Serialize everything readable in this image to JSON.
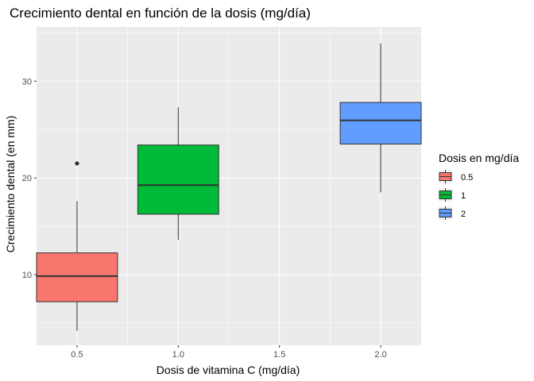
{
  "chart_data": {
    "type": "boxplot",
    "title": "Crecimiento dental en función de la dosis (mg/día)",
    "xlabel": "Dosis de vitamina C (mg/día)",
    "ylabel": "Crecimiento dental (en mm)",
    "x_ticks": [
      "0.5",
      "1.0",
      "1.5",
      "2.0"
    ],
    "y_ticks": [
      10,
      20,
      30
    ],
    "xlim": [
      0.3,
      2.2
    ],
    "ylim": [
      2.7,
      35.6
    ],
    "grid": true,
    "legend": {
      "title": "Dosis en mg/día",
      "position": "right",
      "entries": [
        "0.5",
        "1",
        "2"
      ]
    },
    "boxes": [
      {
        "label": "0.5",
        "x": 0.5,
        "min": 4.2,
        "q1": 7.2,
        "median": 9.85,
        "q3": 12.25,
        "max": 17.6,
        "outliers": [
          21.5
        ],
        "color": "#F8766D"
      },
      {
        "label": "1",
        "x": 1.0,
        "min": 13.6,
        "q1": 16.25,
        "median": 19.25,
        "q3": 23.4,
        "max": 27.3,
        "outliers": [],
        "color": "#00BA38"
      },
      {
        "label": "2",
        "x": 2.0,
        "min": 18.5,
        "q1": 23.5,
        "median": 25.95,
        "q3": 27.8,
        "max": 33.9,
        "outliers": [],
        "color": "#619CFF"
      }
    ]
  }
}
